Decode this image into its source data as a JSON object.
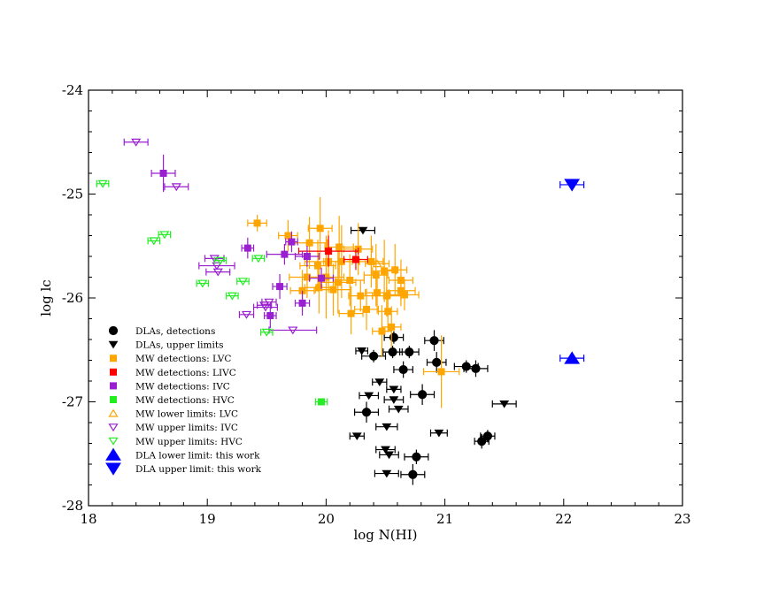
{
  "chart_data": {
    "type": "scatter",
    "xlabel": "log N(HI)",
    "ylabel": "log lc",
    "xlim": [
      18,
      23
    ],
    "ylim": [
      -28,
      -24
    ],
    "xticks": [
      "18",
      "19",
      "20",
      "21",
      "22",
      "23"
    ],
    "yticks": [
      "-28",
      "-27",
      "-26",
      "-25",
      "-24"
    ],
    "grid": false,
    "legend_position": "bottom-left",
    "series": [
      {
        "name": "DLAs, detections",
        "marker": "circle-filled",
        "color": "#000000",
        "points": [
          {
            "x": 20.57,
            "y": -26.38,
            "xerr": 0.08,
            "yerr": 0.06
          },
          {
            "x": 20.4,
            "y": -26.56,
            "xerr": 0.1,
            "yerr": 0.06
          },
          {
            "x": 20.56,
            "y": -26.52,
            "xerr": 0.08,
            "yerr": 0.06
          },
          {
            "x": 20.7,
            "y": -26.52,
            "xerr": 0.08,
            "yerr": 0.06
          },
          {
            "x": 20.65,
            "y": -26.69,
            "xerr": 0.08,
            "yerr": 0.08
          },
          {
            "x": 20.91,
            "y": -26.41,
            "xerr": 0.08,
            "yerr": 0.1
          },
          {
            "x": 20.93,
            "y": -26.62,
            "xerr": 0.08,
            "yerr": 0.1
          },
          {
            "x": 21.18,
            "y": -26.66,
            "xerr": 0.1,
            "yerr": 0.06
          },
          {
            "x": 21.26,
            "y": -26.68,
            "xerr": 0.1,
            "yerr": 0.08
          },
          {
            "x": 20.81,
            "y": -26.93,
            "xerr": 0.1,
            "yerr": 0.1
          },
          {
            "x": 20.34,
            "y": -27.1,
            "xerr": 0.1,
            "yerr": 0.1
          },
          {
            "x": 21.36,
            "y": -27.33,
            "xerr": 0.06,
            "yerr": 0.06
          },
          {
            "x": 21.31,
            "y": -27.38,
            "xerr": 0.06,
            "yerr": 0.07
          },
          {
            "x": 20.76,
            "y": -27.53,
            "xerr": 0.1,
            "yerr": 0.07
          },
          {
            "x": 20.73,
            "y": -27.7,
            "xerr": 0.1,
            "yerr": 0.1
          }
        ]
      },
      {
        "name": "DLAs, upper limits",
        "marker": "triangle-down-filled",
        "color": "#000000",
        "points": [
          {
            "x": 20.31,
            "y": -25.35,
            "xerr": 0.1,
            "yerr": 0
          },
          {
            "x": 20.3,
            "y": -26.51,
            "xerr": 0.05,
            "yerr": 0
          },
          {
            "x": 20.45,
            "y": -26.81,
            "xerr": 0.06,
            "yerr": 0
          },
          {
            "x": 20.57,
            "y": -26.88,
            "xerr": 0.06,
            "yerr": 0
          },
          {
            "x": 20.36,
            "y": -26.94,
            "xerr": 0.08,
            "yerr": 0
          },
          {
            "x": 20.57,
            "y": -26.98,
            "xerr": 0.08,
            "yerr": 0
          },
          {
            "x": 20.61,
            "y": -27.07,
            "xerr": 0.08,
            "yerr": 0
          },
          {
            "x": 20.51,
            "y": -27.24,
            "xerr": 0.09,
            "yerr": 0
          },
          {
            "x": 20.26,
            "y": -27.33,
            "xerr": 0.06,
            "yerr": 0
          },
          {
            "x": 20.95,
            "y": -27.3,
            "xerr": 0.07,
            "yerr": 0
          },
          {
            "x": 21.5,
            "y": -27.02,
            "xerr": 0.1,
            "yerr": 0
          },
          {
            "x": 20.5,
            "y": -27.46,
            "xerr": 0.08,
            "yerr": 0
          },
          {
            "x": 20.53,
            "y": -27.51,
            "xerr": 0.08,
            "yerr": 0
          },
          {
            "x": 20.51,
            "y": -27.69,
            "xerr": 0.1,
            "yerr": 0
          }
        ]
      },
      {
        "name": "MW detections: LVC",
        "marker": "square-filled",
        "color": "#ffa500",
        "points": [
          {
            "x": 19.42,
            "y": -25.28,
            "xerr": 0.08,
            "yerr": 0.08
          },
          {
            "x": 19.68,
            "y": -25.4,
            "xerr": 0.08,
            "yerr": 0.15
          },
          {
            "x": 19.95,
            "y": -25.33,
            "xerr": 0.1,
            "yerr": 0.3
          },
          {
            "x": 19.86,
            "y": -25.47,
            "xerr": 0.15,
            "yerr": 0.25
          },
          {
            "x": 20.11,
            "y": -25.51,
            "xerr": 0.12,
            "yerr": 0.3
          },
          {
            "x": 20.27,
            "y": -25.53,
            "xerr": 0.12,
            "yerr": 0.25
          },
          {
            "x": 20.13,
            "y": -25.65,
            "xerr": 0.15,
            "yerr": 0.35
          },
          {
            "x": 19.93,
            "y": -25.69,
            "xerr": 0.15,
            "yerr": 0.25
          },
          {
            "x": 19.84,
            "y": -25.8,
            "xerr": 0.15,
            "yerr": 0.2
          },
          {
            "x": 20.0,
            "y": -25.8,
            "xerr": 0.15,
            "yerr": 0.4
          },
          {
            "x": 20.1,
            "y": -25.85,
            "xerr": 0.15,
            "yerr": 0.3
          },
          {
            "x": 20.2,
            "y": -25.83,
            "xerr": 0.12,
            "yerr": 0.25
          },
          {
            "x": 19.8,
            "y": -25.93,
            "xerr": 0.1,
            "yerr": 0.2
          },
          {
            "x": 19.94,
            "y": -25.9,
            "xerr": 0.12,
            "yerr": 0.25
          },
          {
            "x": 20.42,
            "y": -25.78,
            "xerr": 0.1,
            "yerr": 0.3
          },
          {
            "x": 20.49,
            "y": -25.74,
            "xerr": 0.1,
            "yerr": 0.3
          },
          {
            "x": 20.58,
            "y": -25.73,
            "xerr": 0.1,
            "yerr": 0.25
          },
          {
            "x": 20.63,
            "y": -25.83,
            "xerr": 0.1,
            "yerr": 0.2
          },
          {
            "x": 20.43,
            "y": -25.95,
            "xerr": 0.1,
            "yerr": 0.2
          },
          {
            "x": 20.51,
            "y": -25.98,
            "xerr": 0.12,
            "yerr": 0.2
          },
          {
            "x": 20.63,
            "y": -25.93,
            "xerr": 0.12,
            "yerr": 0.15
          },
          {
            "x": 20.66,
            "y": -25.97,
            "xerr": 0.12,
            "yerr": 0.15
          },
          {
            "x": 20.29,
            "y": -25.98,
            "xerr": 0.1,
            "yerr": 0.15
          },
          {
            "x": 20.21,
            "y": -26.15,
            "xerr": 0.1,
            "yerr": 0.2
          },
          {
            "x": 20.34,
            "y": -26.11,
            "xerr": 0.1,
            "yerr": 0.2
          },
          {
            "x": 20.52,
            "y": -26.13,
            "xerr": 0.08,
            "yerr": 0.2
          },
          {
            "x": 20.55,
            "y": -26.28,
            "xerr": 0.08,
            "yerr": 0.2
          },
          {
            "x": 20.47,
            "y": -26.32,
            "xerr": 0.08,
            "yerr": 0.25
          },
          {
            "x": 20.97,
            "y": -26.71,
            "xerr": 0.15,
            "yerr": 0.35
          },
          {
            "x": 20.02,
            "y": -25.65,
            "xerr": 0.2,
            "yerr": 0.3
          },
          {
            "x": 20.38,
            "y": -25.65,
            "xerr": 0.1,
            "yerr": 0.25
          },
          {
            "x": 20.06,
            "y": -25.92,
            "xerr": 0.15,
            "yerr": 0.25
          }
        ]
      },
      {
        "name": "MW detections: LIVC",
        "marker": "square-filled",
        "color": "#ff0000",
        "points": [
          {
            "x": 20.02,
            "y": -25.55,
            "xerr": 0.25,
            "yerr": 0.15
          },
          {
            "x": 20.25,
            "y": -25.63,
            "xerr": 0.1,
            "yerr": 0.1
          }
        ]
      },
      {
        "name": "MW detections: IVC",
        "marker": "square-filled",
        "color": "#9a1fd0",
        "points": [
          {
            "x": 18.63,
            "y": -24.8,
            "xerr": 0.1,
            "yerr": 0.18
          },
          {
            "x": 19.34,
            "y": -25.52,
            "xerr": 0.05,
            "yerr": 0.1
          },
          {
            "x": 19.71,
            "y": -25.46,
            "xerr": 0.05,
            "yerr": 0.1
          },
          {
            "x": 19.65,
            "y": -25.58,
            "xerr": 0.15,
            "yerr": 0.1
          },
          {
            "x": 19.84,
            "y": -25.6,
            "xerr": 0.1,
            "yerr": 0.1
          },
          {
            "x": 19.61,
            "y": -25.89,
            "xerr": 0.06,
            "yerr": 0.12
          },
          {
            "x": 19.96,
            "y": -25.81,
            "xerr": 0.1,
            "yerr": 0.1
          },
          {
            "x": 19.8,
            "y": -26.05,
            "xerr": 0.06,
            "yerr": 0.12
          },
          {
            "x": 19.53,
            "y": -26.17,
            "xerr": 0.05,
            "yerr": 0.12
          }
        ]
      },
      {
        "name": "MW detections: HVC",
        "marker": "square-filled",
        "color": "#22ee22",
        "points": [
          {
            "x": 19.96,
            "y": -27.0,
            "xerr": 0.05,
            "yerr": 0.03
          }
        ]
      },
      {
        "name": "MW lower limits: LVC",
        "marker": "triangle-up-open",
        "color": "#ffa500",
        "points": [
          {
            "x": 20.43,
            "y": -25.67,
            "xerr": 0.1,
            "yerr": 0
          }
        ]
      },
      {
        "name": "MW upper limits: IVC",
        "marker": "triangle-down-open",
        "color": "#9a1fd0",
        "points": [
          {
            "x": 18.4,
            "y": -24.5,
            "xerr": 0.1,
            "yerr": 0
          },
          {
            "x": 18.74,
            "y": -24.93,
            "xerr": 0.1,
            "yerr": 0
          },
          {
            "x": 19.06,
            "y": -25.62,
            "xerr": 0.08,
            "yerr": 0
          },
          {
            "x": 19.08,
            "y": -25.69,
            "xerr": 0.15,
            "yerr": 0
          },
          {
            "x": 19.09,
            "y": -25.75,
            "xerr": 0.1,
            "yerr": 0
          },
          {
            "x": 19.33,
            "y": -26.16,
            "xerr": 0.06,
            "yerr": 0
          },
          {
            "x": 19.48,
            "y": -26.07,
            "xerr": 0.06,
            "yerr": 0
          },
          {
            "x": 19.52,
            "y": -26.04,
            "xerr": 0.06,
            "yerr": 0
          },
          {
            "x": 19.72,
            "y": -26.31,
            "xerr": 0.2,
            "yerr": 0
          },
          {
            "x": 19.49,
            "y": -26.09,
            "xerr": 0.1,
            "yerr": 0
          }
        ]
      },
      {
        "name": "MW upper limits: HVC",
        "marker": "triangle-down-open",
        "color": "#22ee22",
        "points": [
          {
            "x": 18.12,
            "y": -24.9,
            "xerr": 0.05,
            "yerr": 0
          },
          {
            "x": 18.55,
            "y": -25.45,
            "xerr": 0.05,
            "yerr": 0
          },
          {
            "x": 18.64,
            "y": -25.39,
            "xerr": 0.05,
            "yerr": 0
          },
          {
            "x": 19.11,
            "y": -25.64,
            "xerr": 0.05,
            "yerr": 0
          },
          {
            "x": 18.96,
            "y": -25.86,
            "xerr": 0.05,
            "yerr": 0
          },
          {
            "x": 19.21,
            "y": -25.98,
            "xerr": 0.05,
            "yerr": 0
          },
          {
            "x": 19.3,
            "y": -25.84,
            "xerr": 0.05,
            "yerr": 0
          },
          {
            "x": 19.43,
            "y": -25.62,
            "xerr": 0.05,
            "yerr": 0
          },
          {
            "x": 19.5,
            "y": -26.33,
            "xerr": 0.05,
            "yerr": 0
          }
        ]
      },
      {
        "name": "DLA lower limit: this work",
        "marker": "triangle-up-filled-large",
        "color": "#0000ff",
        "points": [
          {
            "x": 22.07,
            "y": -26.58,
            "xerr": 0.1,
            "yerr": 0
          }
        ]
      },
      {
        "name": "DLA upper limit: this work",
        "marker": "triangle-down-filled-large",
        "color": "#0000ff",
        "points": [
          {
            "x": 22.07,
            "y": -24.91,
            "xerr": 0.1,
            "yerr": 0
          }
        ]
      }
    ]
  }
}
